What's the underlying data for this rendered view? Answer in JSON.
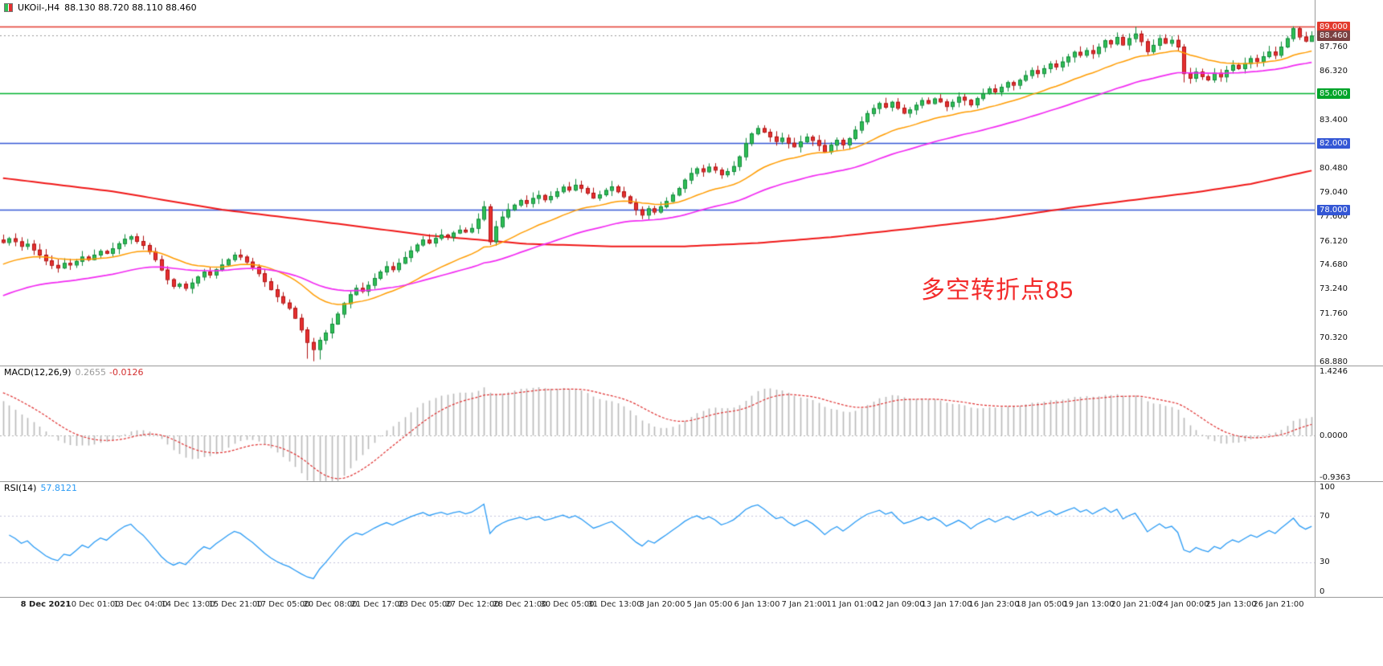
{
  "header": {
    "symbol": "UKOil-,H4",
    "ohlc": "88.130 88.720 88.110 88.460"
  },
  "annotation": {
    "text": "多空转折点85",
    "color": "#f32b2b"
  },
  "colors": {
    "bg": "#ffffff",
    "up": "#2fbe54",
    "up_border": "#118a3c",
    "down": "#e63030",
    "down_border": "#b01010",
    "macd_hist": "#b9b9b9",
    "macd_signal": "#e03030",
    "rsi_line": "#2a9bf5",
    "rsi_levels": "#c3c3dd",
    "current_line": "#9a9a9a",
    "slow_ma": "#f01818",
    "separator": "#9a9a9a"
  },
  "price_axis": {
    "regular": [
      "87.760",
      "86.320",
      "83.400",
      "80.480",
      "79.040",
      "77.600",
      "76.120",
      "74.680",
      "73.240",
      "71.760",
      "70.320",
      "68.880"
    ],
    "highlighted": [
      {
        "value": "89.000",
        "price": 89.0,
        "bg": "#e23b2e"
      },
      {
        "value": "88.460",
        "price": 88.46,
        "bg": "#7a4040"
      },
      {
        "value": "85.000",
        "price": 85.0,
        "bg": "#00a42a"
      },
      {
        "value": "82.000",
        "price": 82.0,
        "bg": "#3457d5"
      },
      {
        "value": "78.000",
        "price": 78.0,
        "bg": "#3457d5"
      }
    ]
  },
  "hlines": [
    {
      "price": 89.0,
      "color": "#e23b2e"
    },
    {
      "price": 85.0,
      "color": "#00b32e"
    },
    {
      "price": 82.0,
      "color": "#3457d5"
    },
    {
      "price": 78.0,
      "color": "#3457d5"
    }
  ],
  "current_price": {
    "price": 88.46,
    "label": "88.460"
  },
  "macd": {
    "label": "MACD(12,26,9)",
    "value_main": "0.2655",
    "value_signal": "-0.0126",
    "axis": [
      "1.4246",
      "0.0000",
      "-0.9363"
    ],
    "range": {
      "max": 1.56,
      "min": -1.02
    },
    "fast": 12,
    "slow": 26,
    "signal": 9,
    "seed_fast": 76.9,
    "seed_slow": 76.0,
    "seed_signal": 1.0
  },
  "rsi": {
    "label": "RSI(14)",
    "value": "57.8121",
    "axis": [
      "100",
      "70",
      "30",
      "0"
    ],
    "levels": [
      70,
      30
    ],
    "period": 14,
    "seed": 0.12
  },
  "chart_data": {
    "type": "candlestick",
    "symbol": "UKOil-",
    "timeframe": "H4",
    "title": "UKOil-,H4 88.130 88.720 88.110 88.460",
    "price_range": {
      "max": 90.6,
      "min": 68.64
    },
    "first_open": 76.2,
    "wick": {
      "base": 0.06,
      "amp": 0.3
    },
    "closes": [
      76.05,
      76.28,
      76.1,
      75.82,
      75.95,
      75.6,
      75.3,
      74.95,
      74.68,
      74.52,
      74.8,
      74.7,
      74.92,
      75.18,
      75.02,
      75.3,
      75.52,
      75.4,
      75.68,
      75.98,
      76.25,
      76.4,
      76.12,
      75.88,
      75.5,
      75.02,
      74.4,
      73.82,
      73.42,
      73.55,
      73.3,
      73.62,
      73.98,
      74.28,
      74.1,
      74.42,
      74.7,
      75.02,
      75.3,
      75.18,
      74.88,
      74.58,
      74.18,
      73.7,
      73.22,
      72.8,
      72.42,
      72.1,
      71.5,
      70.8,
      70.05,
      69.62,
      70.18,
      70.62,
      71.15,
      71.75,
      72.38,
      72.92,
      73.3,
      73.12,
      73.48,
      73.9,
      74.28,
      74.6,
      74.42,
      74.8,
      75.15,
      75.55,
      75.9,
      76.2,
      76.02,
      76.3,
      76.5,
      76.38,
      76.62,
      76.8,
      76.68,
      76.9,
      77.45,
      78.2,
      76.1,
      77.0,
      77.58,
      78.02,
      78.3,
      78.58,
      78.4,
      78.7,
      78.88,
      78.62,
      78.82,
      79.1,
      79.38,
      79.2,
      79.5,
      79.3,
      79.02,
      78.72,
      78.92,
      79.18,
      79.4,
      79.1,
      78.8,
      78.42,
      78.02,
      77.7,
      78.08,
      77.88,
      78.2,
      78.52,
      78.9,
      79.3,
      79.8,
      80.2,
      80.48,
      80.3,
      80.58,
      80.4,
      80.12,
      80.32,
      80.62,
      81.2,
      82.0,
      82.58,
      82.9,
      82.68,
      82.4,
      82.12,
      82.32,
      82.02,
      81.8,
      82.1,
      82.38,
      82.18,
      81.88,
      81.5,
      81.9,
      82.2,
      81.92,
      82.3,
      82.8,
      83.3,
      83.8,
      84.1,
      84.4,
      84.18,
      84.48,
      84.12,
      83.82,
      84.02,
      84.3,
      84.58,
      84.4,
      84.68,
      84.5,
      84.22,
      84.48,
      84.78,
      84.6,
      84.32,
      84.7,
      85.0,
      85.28,
      85.1,
      85.38,
      85.66,
      85.5,
      85.8,
      86.08,
      86.38,
      86.2,
      86.5,
      86.78,
      86.6,
      86.9,
      87.2,
      87.48,
      87.3,
      87.58,
      87.4,
      87.78,
      88.18,
      87.98,
      88.38,
      87.92,
      88.3,
      88.58,
      88.12,
      87.52,
      87.9,
      88.3,
      88.02,
      88.2,
      87.8,
      86.2,
      85.92,
      86.3,
      86.02,
      85.82,
      86.22,
      86.0,
      86.4,
      86.7,
      86.5,
      86.8,
      87.1,
      86.92,
      87.22,
      87.5,
      87.3,
      87.8,
      88.3,
      88.9,
      88.4,
      88.15,
      88.46
    ],
    "candle_overrides": {
      "50": [
        70.8,
        70.95,
        69.05,
        70.05
      ],
      "51": [
        70.05,
        70.3,
        68.9,
        69.62
      ],
      "52": [
        69.62,
        70.35,
        69.0,
        70.18
      ],
      "80": [
        78.2,
        78.34,
        75.88,
        76.1
      ],
      "186": [
        88.3,
        89.0,
        88.05,
        88.58
      ],
      "194": [
        87.8,
        87.95,
        85.65,
        86.2
      ],
      "212": [
        88.3,
        89.02,
        88.1,
        88.9
      ],
      "213": [
        88.9,
        89.0,
        88.2,
        88.4
      ],
      "215": [
        88.13,
        88.72,
        88.11,
        88.46
      ]
    },
    "last_ohlc": {
      "open": "88.130",
      "high": "88.720",
      "low": "88.110",
      "close": "88.460"
    },
    "moving_averages": [
      {
        "name": "fast-ma",
        "period": 22,
        "seed": 74.6,
        "color": "#ff9c00",
        "width": 1.5
      },
      {
        "name": "medium-ma",
        "period": 48,
        "seed": 72.7,
        "color": "#f22bf2",
        "width": 1.7
      }
    ],
    "slow_ma_points": [
      [
        0,
        79.9
      ],
      [
        18,
        79.1
      ],
      [
        36,
        78.0
      ],
      [
        54,
        77.2
      ],
      [
        70,
        76.45
      ],
      [
        86,
        75.95
      ],
      [
        100,
        75.8
      ],
      [
        112,
        75.8
      ],
      [
        124,
        76.0
      ],
      [
        136,
        76.35
      ],
      [
        150,
        76.9
      ],
      [
        163,
        77.45
      ],
      [
        175,
        78.1
      ],
      [
        186,
        78.6
      ],
      [
        196,
        79.05
      ],
      [
        205,
        79.55
      ],
      [
        215,
        80.35
      ]
    ],
    "time_labels": [
      "8 Dec 2021",
      "10 Dec 01:00",
      "13 Dec 04:00",
      "14 Dec 13:00",
      "15 Dec 21:00",
      "17 Dec 05:00",
      "20 Dec 08:00",
      "21 Dec 17:00",
      "23 Dec 05:00",
      "27 Dec 12:00",
      "28 Dec 21:00",
      "30 Dec 05:00",
      "31 Dec 13:00",
      "3 Jan 20:00",
      "5 Jan 05:00",
      "6 Jan 13:00",
      "7 Jan 21:00",
      "11 Jan 01:00",
      "12 Jan 09:00",
      "13 Jan 17:00",
      "16 Jan 23:00",
      "18 Jan 05:00",
      "19 Jan 13:00",
      "20 Jan 21:00",
      "24 Jan 00:00",
      "25 Jan 13:00",
      "26 Jan 21:00"
    ]
  }
}
